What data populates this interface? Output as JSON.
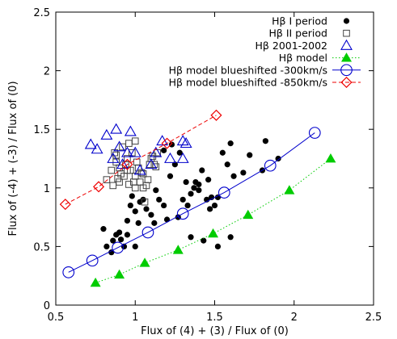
{
  "chart_data": {
    "type": "scatter",
    "xlabel": "Flux of (4) + (3) / Flux of (0)",
    "ylabel": "Flux of (-4) + (-3) / Flux of (0)",
    "xlim": [
      0.5,
      2.5
    ],
    "ylim": [
      0,
      2.5
    ],
    "x_ticks": [
      "0.5",
      "1",
      "1.5",
      "2",
      "2.5"
    ],
    "y_ticks": [
      "0",
      "0.5",
      "1",
      "1.5",
      "2",
      "2.5"
    ],
    "x_tick_values": [
      0.5,
      1,
      1.5,
      2,
      2.5
    ],
    "y_tick_values": [
      0,
      0.5,
      1,
      1.5,
      2,
      2.5
    ],
    "grid": false,
    "legend_position": "top-right",
    "series": [
      {
        "name": "Hβ I period",
        "marker": "filled-circle",
        "color": "#000000",
        "points": [
          [
            0.8,
            0.65
          ],
          [
            0.82,
            0.5
          ],
          [
            0.85,
            0.45
          ],
          [
            0.86,
            0.55
          ],
          [
            0.88,
            0.6
          ],
          [
            0.9,
            0.62
          ],
          [
            0.91,
            0.56
          ],
          [
            0.93,
            0.5
          ],
          [
            0.95,
            0.6
          ],
          [
            0.95,
            0.72
          ],
          [
            0.97,
            0.85
          ],
          [
            0.98,
            0.93
          ],
          [
            1.0,
            0.8
          ],
          [
            1.0,
            0.5
          ],
          [
            1.02,
            0.7
          ],
          [
            1.03,
            0.88
          ],
          [
            1.05,
            0.9
          ],
          [
            1.07,
            0.82
          ],
          [
            1.1,
            0.77
          ],
          [
            1.12,
            0.7
          ],
          [
            1.13,
            0.98
          ],
          [
            1.15,
            0.9
          ],
          [
            1.18,
            0.85
          ],
          [
            1.2,
            0.73
          ],
          [
            1.22,
            1.1
          ],
          [
            1.25,
            1.2
          ],
          [
            1.27,
            0.75
          ],
          [
            1.3,
            0.9
          ],
          [
            1.32,
            1.05
          ],
          [
            1.33,
            0.85
          ],
          [
            1.35,
            0.95
          ],
          [
            1.37,
            1.0
          ],
          [
            1.38,
            1.05
          ],
          [
            1.4,
            0.98
          ],
          [
            1.4,
            1.03
          ],
          [
            1.42,
            1.15
          ],
          [
            1.43,
            0.55
          ],
          [
            1.45,
            0.9
          ],
          [
            1.46,
            1.07
          ],
          [
            1.47,
            0.82
          ],
          [
            1.48,
            0.92
          ],
          [
            1.5,
            0.85
          ],
          [
            1.52,
            0.92
          ],
          [
            1.55,
            1.3
          ],
          [
            1.58,
            1.2
          ],
          [
            1.6,
            1.38
          ],
          [
            1.62,
            1.1
          ],
          [
            1.68,
            1.13
          ],
          [
            1.72,
            1.28
          ],
          [
            1.8,
            1.15
          ],
          [
            1.9,
            1.25
          ],
          [
            1.82,
            1.4
          ],
          [
            1.52,
            0.5
          ],
          [
            1.6,
            0.58
          ],
          [
            1.35,
            0.58
          ],
          [
            1.23,
            1.37
          ],
          [
            1.28,
            1.3
          ],
          [
            1.18,
            1.32
          ]
        ]
      },
      {
        "name": "Hβ II period",
        "marker": "open-square",
        "color": "#000000",
        "points": [
          [
            0.82,
            1.07
          ],
          [
            0.85,
            1.15
          ],
          [
            0.86,
            1.02
          ],
          [
            0.87,
            1.3
          ],
          [
            0.88,
            1.22
          ],
          [
            0.89,
            1.08
          ],
          [
            0.9,
            1.17
          ],
          [
            0.91,
            1.12
          ],
          [
            0.92,
            1.35
          ],
          [
            0.93,
            1.1
          ],
          [
            0.94,
            1.2
          ],
          [
            0.95,
            1.25
          ],
          [
            0.96,
            1.03
          ],
          [
            0.97,
            1.15
          ],
          [
            0.98,
            1.3
          ],
          [
            0.99,
            1.05
          ],
          [
            1.0,
            1.0
          ],
          [
            1.0,
            1.1
          ],
          [
            1.01,
            1.22
          ],
          [
            1.02,
            1.17
          ],
          [
            1.03,
            1.05
          ],
          [
            1.04,
            1.13
          ],
          [
            1.05,
            1.0
          ],
          [
            1.06,
            0.88
          ],
          [
            1.07,
            1.02
          ],
          [
            1.08,
            1.07
          ],
          [
            1.09,
            1.2
          ],
          [
            1.1,
            1.25
          ],
          [
            1.11,
            1.27
          ],
          [
            1.12,
            1.2
          ],
          [
            1.13,
            1.18
          ],
          [
            1.14,
            1.3
          ],
          [
            0.96,
            1.38
          ],
          [
            0.88,
            1.28
          ],
          [
            1.0,
            1.4
          ],
          [
            1.05,
            1.12
          ],
          [
            0.9,
            1.05
          ],
          [
            0.95,
            1.15
          ]
        ]
      },
      {
        "name": "Hβ 2001-2002",
        "marker": "open-triangle",
        "color": "#0000cc",
        "points": [
          [
            0.72,
            1.37
          ],
          [
            0.76,
            1.33
          ],
          [
            0.82,
            1.45
          ],
          [
            0.86,
            1.25
          ],
          [
            0.88,
            1.5
          ],
          [
            0.9,
            1.35
          ],
          [
            0.92,
            1.2
          ],
          [
            0.95,
            1.3
          ],
          [
            0.97,
            1.48
          ],
          [
            1.0,
            1.3
          ],
          [
            1.03,
            1.15
          ],
          [
            1.17,
            1.4
          ],
          [
            1.13,
            1.3
          ],
          [
            1.22,
            1.25
          ],
          [
            1.3,
            1.25
          ],
          [
            1.3,
            1.4
          ],
          [
            1.32,
            1.38
          ],
          [
            1.1,
            1.2
          ]
        ]
      },
      {
        "name": "Hβ model",
        "marker": "filled-triangle",
        "color": "#00cc00",
        "line_style": "dotted",
        "points": [
          [
            0.75,
            0.19
          ],
          [
            0.9,
            0.26
          ],
          [
            1.06,
            0.36
          ],
          [
            1.27,
            0.47
          ],
          [
            1.49,
            0.61
          ],
          [
            1.71,
            0.77
          ],
          [
            1.97,
            0.98
          ],
          [
            2.23,
            1.25
          ]
        ]
      },
      {
        "name": "Hβ model blueshifted -300km/s",
        "marker": "open-circle",
        "color": "#0000cc",
        "line_style": "solid",
        "points": [
          [
            0.58,
            0.28
          ],
          [
            0.73,
            0.38
          ],
          [
            0.89,
            0.49
          ],
          [
            1.08,
            0.62
          ],
          [
            1.3,
            0.78
          ],
          [
            1.56,
            0.96
          ],
          [
            1.85,
            1.19
          ],
          [
            2.13,
            1.47
          ]
        ]
      },
      {
        "name": "Hβ model blueshifted -850km/s",
        "marker": "open-diamond",
        "color": "#ee0000",
        "line_style": "dashed",
        "points": [
          [
            0.56,
            0.86
          ],
          [
            0.77,
            1.01
          ],
          [
            0.95,
            1.2
          ],
          [
            1.2,
            1.38
          ],
          [
            1.51,
            1.62
          ]
        ]
      }
    ]
  }
}
